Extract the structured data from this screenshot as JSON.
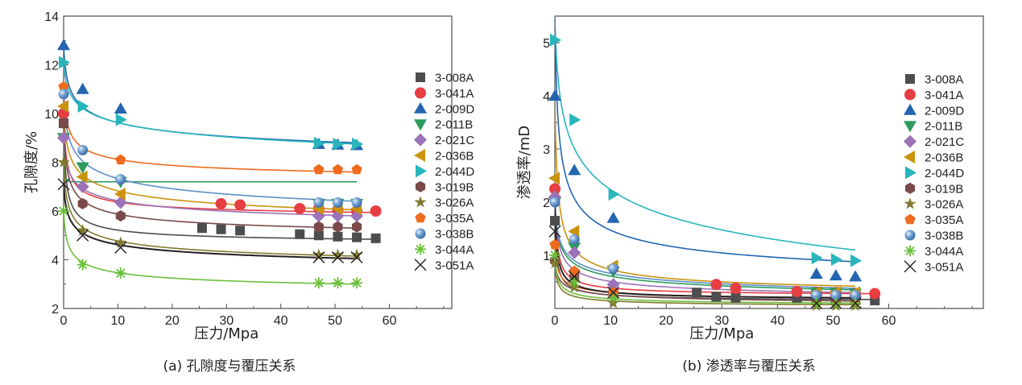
{
  "chart_data": [
    {
      "id": "porosity",
      "type": "scatter",
      "title": "",
      "caption": "(a) 孔隙度与覆压关系",
      "xlabel": "压力/Mpa",
      "ylabel": "孔隙度/%",
      "xlim": [
        0,
        71.5
      ],
      "ylim": [
        2,
        14
      ],
      "xticks": [
        0,
        10,
        20,
        30,
        40,
        50,
        60
      ],
      "yticks": [
        2,
        4,
        6,
        8,
        10,
        12,
        14
      ],
      "grid": false,
      "legend": "right",
      "series": [
        {
          "name": "3-008A",
          "color": "#4d4d4f",
          "marker": "square",
          "x": [
            0,
            25.5,
            29,
            32.5,
            43.5,
            47,
            50.5,
            54,
            57.5
          ],
          "y": [
            9.6,
            5.3,
            5.25,
            5.2,
            5.05,
            5.0,
            4.95,
            4.92,
            4.88
          ],
          "fit": [
            9.6,
            5.2,
            4.85
          ]
        },
        {
          "name": "3-041A",
          "color": "#e63e43",
          "marker": "circle",
          "x": [
            0,
            29,
            32.5,
            43.5,
            47,
            50.5,
            54,
            57.5
          ],
          "y": [
            10.0,
            6.3,
            6.25,
            6.1,
            6.1,
            6.05,
            6.0,
            6.0
          ],
          "fit": [
            10.0,
            6.35,
            5.95
          ]
        },
        {
          "name": "2-009D",
          "color": "#2365b0",
          "marker": "triangle-up",
          "x": [
            0,
            3.5,
            10.5,
            47,
            50.5,
            54
          ],
          "y": [
            12.8,
            11.0,
            10.2,
            8.75,
            8.72,
            8.7
          ],
          "fit": [
            12.8,
            9.6,
            8.8
          ]
        },
        {
          "name": "2-011B",
          "color": "#2e9a5e",
          "marker": "triangle-down",
          "x": [
            0,
            3.5,
            10.5,
            47,
            50.5,
            54
          ],
          "y": [
            9.0,
            7.8,
            7.2,
            6.3,
            6.3,
            6.3
          ],
          "fit": [
            9.0,
            7.2,
            6.3
          ]
        },
        {
          "name": "2-021C",
          "color": "#9b73b8",
          "marker": "diamond",
          "x": [
            0,
            3.5,
            10.5,
            47,
            50.5,
            54
          ],
          "y": [
            9.0,
            7.0,
            6.35,
            5.8,
            5.8,
            5.8
          ],
          "fit": [
            9.0,
            6.4,
            5.8
          ]
        },
        {
          "name": "2-036B",
          "color": "#c9930e",
          "marker": "triangle-left",
          "x": [
            0,
            3.5,
            10.5,
            47,
            50.5,
            54
          ],
          "y": [
            10.3,
            7.4,
            6.7,
            6.1,
            6.1,
            6.1
          ],
          "fit": [
            10.3,
            6.8,
            6.05
          ]
        },
        {
          "name": "2-044D",
          "color": "#28b5bb",
          "marker": "triangle-right",
          "x": [
            0,
            3.5,
            10.5,
            47,
            50.5,
            54
          ],
          "y": [
            12.1,
            10.3,
            9.75,
            8.78,
            8.75,
            8.75
          ],
          "fit": [
            12.1,
            9.6,
            8.75
          ]
        },
        {
          "name": "3-019B",
          "color": "#7a4a4a",
          "marker": "hexagon",
          "x": [
            0,
            3.5,
            10.5,
            47,
            50.5,
            54
          ],
          "y": [
            9.6,
            6.3,
            5.8,
            5.35,
            5.35,
            5.35
          ],
          "fit": [
            9.6,
            5.85,
            5.3
          ]
        },
        {
          "name": "3-026A",
          "color": "#807b2f",
          "marker": "star",
          "x": [
            0,
            3.5,
            10.5,
            47,
            50.5,
            54
          ],
          "y": [
            8.0,
            5.2,
            4.7,
            4.2,
            4.2,
            4.2
          ],
          "fit": [
            8.0,
            4.75,
            4.15
          ]
        },
        {
          "name": "3-035A",
          "color": "#ef6b1f",
          "marker": "pentagon",
          "x": [
            0,
            10.5,
            47,
            50.5,
            54
          ],
          "y": [
            11.1,
            8.1,
            7.7,
            7.7,
            7.7
          ],
          "fit": [
            11.1,
            8.1,
            7.6
          ]
        },
        {
          "name": "3-038B",
          "color": "#5c8fc7",
          "marker": "sphere",
          "x": [
            0,
            3.5,
            10.5,
            47,
            50.5,
            54
          ],
          "y": [
            10.8,
            8.5,
            7.3,
            6.35,
            6.35,
            6.35
          ],
          "fit": [
            10.8,
            7.3,
            6.4
          ]
        },
        {
          "name": "3-044A",
          "color": "#6abf3a",
          "marker": "asterisk",
          "x": [
            0,
            3.5,
            10.5,
            47,
            50.5,
            54
          ],
          "y": [
            6.0,
            3.8,
            3.45,
            3.05,
            3.05,
            3.05
          ],
          "fit": [
            6.0,
            3.45,
            3.0
          ]
        },
        {
          "name": "3-051A",
          "color": "#231f20",
          "marker": "x",
          "x": [
            0,
            3.5,
            10.5,
            47,
            50.5,
            54
          ],
          "y": [
            7.1,
            5.0,
            4.5,
            4.1,
            4.1,
            4.1
          ],
          "fit": [
            7.1,
            4.6,
            4.05
          ]
        }
      ]
    },
    {
      "id": "permeability",
      "type": "scatter",
      "title": "",
      "caption": "(b) 渗透率与覆压关系",
      "xlabel": "压力/Mpa",
      "ylabel": "渗透率/mD",
      "xlim": [
        0,
        77
      ],
      "ylim": [
        0,
        5.5
      ],
      "xticks": [
        0,
        10,
        20,
        30,
        40,
        50,
        60
      ],
      "yticks": [
        1,
        2,
        3,
        4,
        5
      ],
      "grid": false,
      "legend": "right",
      "series": [
        {
          "name": "3-008A",
          "color": "#4d4d4f",
          "marker": "square",
          "x": [
            0,
            25.5,
            29,
            32.5,
            43.5,
            47,
            50.5,
            54,
            57.5
          ],
          "y": [
            1.65,
            0.3,
            0.22,
            0.2,
            0.2,
            0.18,
            0.17,
            0.16,
            0.15
          ],
          "fit": [
            1.65,
            0.25,
            0.17
          ]
        },
        {
          "name": "3-041A",
          "color": "#e63e43",
          "marker": "circle",
          "x": [
            0,
            29,
            32.5,
            43.5,
            47,
            50.5,
            54,
            57.5
          ],
          "y": [
            2.25,
            0.45,
            0.38,
            0.32,
            0.3,
            0.3,
            0.28,
            0.28
          ],
          "fit": [
            2.25,
            0.38,
            0.28
          ]
        },
        {
          "name": "2-009D",
          "color": "#2365b0",
          "marker": "triangle-up",
          "x": [
            0,
            3.5,
            10.5,
            47,
            50.5,
            54
          ],
          "y": [
            4.0,
            2.6,
            1.7,
            0.65,
            0.62,
            0.6
          ],
          "fit": [
            5.5,
            1.45,
            0.88
          ]
        },
        {
          "name": "2-011B",
          "color": "#2e9a5e",
          "marker": "triangle-down",
          "x": [
            0,
            3.5,
            10.5,
            47,
            50.5,
            54
          ],
          "y": [
            2.0,
            1.15,
            0.7,
            0.3,
            0.3,
            0.28
          ],
          "fit": [
            2.0,
            0.6,
            0.35
          ]
        },
        {
          "name": "2-021C",
          "color": "#9b73b8",
          "marker": "diamond",
          "x": [
            0,
            3.5,
            10.5,
            47,
            50.5,
            54
          ],
          "y": [
            2.1,
            1.05,
            0.45,
            0.25,
            0.24,
            0.23
          ],
          "fit": [
            2.1,
            0.5,
            0.3
          ]
        },
        {
          "name": "2-036B",
          "color": "#c9930e",
          "marker": "triangle-left",
          "x": [
            0,
            3.5,
            10.5,
            47,
            50.5,
            54
          ],
          "y": [
            2.45,
            1.45,
            0.8,
            0.3,
            0.3,
            0.3
          ],
          "fit": [
            4.0,
            0.72,
            0.42
          ]
        },
        {
          "name": "2-044D",
          "color": "#28b5bb",
          "marker": "triangle-right",
          "x": [
            0,
            3.5,
            10.5,
            47,
            50.5,
            54
          ],
          "y": [
            5.05,
            3.55,
            2.15,
            0.95,
            0.92,
            0.9
          ],
          "fit": [
            5.5,
            2.2,
            1.1
          ]
        },
        {
          "name": "3-019B",
          "color": "#7a4a4a",
          "marker": "hexagon",
          "x": [
            0,
            3.5,
            10.5,
            47,
            50.5,
            54
          ],
          "y": [
            0.9,
            0.6,
            0.3,
            0.15,
            0.15,
            0.15
          ],
          "fit": [
            0.9,
            0.25,
            0.14
          ]
        },
        {
          "name": "3-026A",
          "color": "#807b2f",
          "marker": "star",
          "x": [
            0,
            3.5,
            10.5,
            47,
            50.5,
            54
          ],
          "y": [
            0.85,
            0.4,
            0.1,
            0.05,
            0.05,
            0.05
          ],
          "fit": [
            0.85,
            0.14,
            0.07
          ]
        },
        {
          "name": "3-035A",
          "color": "#ef6b1f",
          "marker": "pentagon",
          "x": [
            0,
            3.5,
            10.5,
            47,
            50.5,
            54
          ],
          "y": [
            1.2,
            0.7,
            0.3,
            0.2,
            0.2,
            0.2
          ],
          "fit": [
            1.2,
            0.3,
            0.2
          ]
        },
        {
          "name": "3-038B",
          "color": "#5c8fc7",
          "marker": "sphere",
          "x": [
            0,
            3.5,
            10.5,
            47,
            50.5,
            54
          ],
          "y": [
            2.0,
            1.3,
            0.75,
            0.25,
            0.25,
            0.25
          ],
          "fit": [
            2.0,
            0.65,
            0.38
          ]
        },
        {
          "name": "3-044A",
          "color": "#6abf3a",
          "marker": "asterisk",
          "x": [
            0,
            3.5,
            10.5,
            47,
            50.5,
            54
          ],
          "y": [
            1.0,
            0.5,
            0.2,
            0.1,
            0.1,
            0.1
          ],
          "fit": [
            1.0,
            0.18,
            0.1
          ]
        },
        {
          "name": "3-051A",
          "color": "#231f20",
          "marker": "x",
          "x": [
            0,
            3.5,
            10.5,
            47,
            50.5,
            54
          ],
          "y": [
            1.45,
            0.6,
            0.3,
            0.1,
            0.1,
            0.1
          ],
          "fit": [
            1.95,
            0.3,
            0.2
          ]
        }
      ]
    }
  ]
}
